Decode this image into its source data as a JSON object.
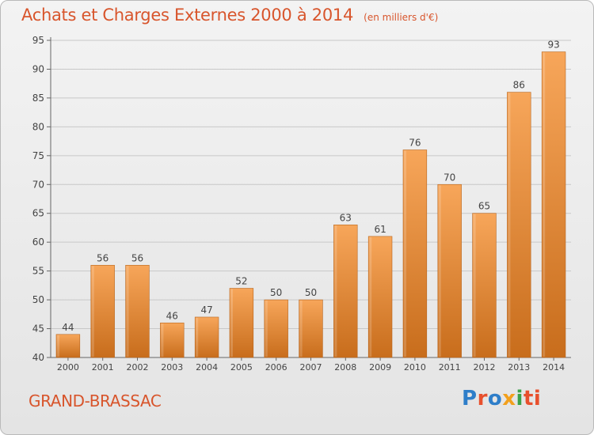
{
  "title": "Achats et Charges Externes 2000 à 2014",
  "unit": "(en milliers d'€)",
  "commune": "GRAND-BRASSAC",
  "logo": {
    "text": "Proxiti",
    "letters": [
      "P",
      "r",
      "o",
      "x",
      "i",
      "ti"
    ]
  },
  "colors": {
    "title": "#d8552c",
    "bar_light": "#f7a65a",
    "bar_dark": "#c86d1c",
    "grid": "#c8c8c8",
    "axis_text": "#444444"
  },
  "chart_data": {
    "type": "bar",
    "categories": [
      "2000",
      "2001",
      "2002",
      "2003",
      "2004",
      "2005",
      "2006",
      "2007",
      "2008",
      "2009",
      "2010",
      "2011",
      "2012",
      "2013",
      "2014"
    ],
    "values": [
      44,
      56,
      56,
      46,
      47,
      52,
      50,
      50,
      63,
      61,
      76,
      70,
      65,
      86,
      93
    ],
    "ylim": [
      40,
      95
    ],
    "yticks": [
      40,
      45,
      50,
      55,
      60,
      65,
      70,
      75,
      80,
      85,
      90,
      95
    ],
    "grid": true,
    "data_labels": true
  }
}
